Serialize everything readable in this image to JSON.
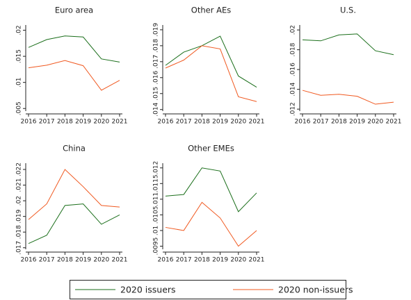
{
  "chart_data": [
    {
      "type": "line",
      "title": "Euro area",
      "categories": [
        "2016",
        "2017",
        "2018",
        "2019",
        "2020",
        "2021"
      ],
      "series": [
        {
          "name": "2020 issuers",
          "color": "#1a6e1a",
          "values": [
            0.0167,
            0.0182,
            0.0189,
            0.0187,
            0.0145,
            0.0139
          ]
        },
        {
          "name": "2020 non-issuers",
          "color": "#f0581f",
          "values": [
            0.0128,
            0.0133,
            0.0142,
            0.0132,
            0.0085,
            0.0104
          ]
        }
      ],
      "ylim": [
        0.0045,
        0.021
      ],
      "yticks": [
        {
          "value": 0.005,
          "label": ".005"
        },
        {
          "value": 0.01,
          "label": ".01"
        },
        {
          "value": 0.015,
          "label": ".015"
        },
        {
          "value": 0.02,
          "label": ".02"
        }
      ]
    },
    {
      "type": "line",
      "title": "Other AEs",
      "categories": [
        "2016",
        "2017",
        "2018",
        "2019",
        "2020",
        "2021"
      ],
      "series": [
        {
          "name": "2020 issuers",
          "color": "#1a6e1a",
          "values": [
            0.01677,
            0.0176,
            0.018,
            0.0186,
            0.0161,
            0.0154
          ]
        },
        {
          "name": "2020 non-issuers",
          "color": "#f0581f",
          "values": [
            0.0166,
            0.0171,
            0.018,
            0.0178,
            0.0148,
            0.0145
          ]
        }
      ],
      "ylim": [
        0.0139,
        0.0193
      ],
      "yticks": [
        {
          "value": 0.014,
          "label": ".014"
        },
        {
          "value": 0.015,
          "label": ".015"
        },
        {
          "value": 0.016,
          "label": ".016"
        },
        {
          "value": 0.017,
          "label": ".017"
        },
        {
          "value": 0.018,
          "label": ".018"
        },
        {
          "value": 0.019,
          "label": ".019"
        }
      ]
    },
    {
      "type": "line",
      "title": "U.S.",
      "categories": [
        "2016",
        "2017",
        "2018",
        "2019",
        "2020",
        "2021"
      ],
      "series": [
        {
          "name": "2020 issuers",
          "color": "#1a6e1a",
          "values": [
            0.019,
            0.0189,
            0.0195,
            0.0196,
            0.0179,
            0.0175
          ]
        },
        {
          "name": "2020 non-issuers",
          "color": "#f0581f",
          "values": [
            0.0139,
            0.0134,
            0.0135,
            0.0133,
            0.0125,
            0.0127
          ]
        }
      ],
      "ylim": [
        0.0118,
        0.0205
      ],
      "yticks": [
        {
          "value": 0.012,
          "label": ".012"
        },
        {
          "value": 0.014,
          "label": ".014"
        },
        {
          "value": 0.016,
          "label": ".016"
        },
        {
          "value": 0.018,
          "label": ".018"
        },
        {
          "value": 0.02,
          "label": ".02"
        }
      ]
    },
    {
      "type": "line",
      "title": "China",
      "categories": [
        "2016",
        "2017",
        "2018",
        "2019",
        "2020",
        "2021"
      ],
      "series": [
        {
          "name": "2020 issuers",
          "color": "#1a6e1a",
          "values": [
            0.01727,
            0.0178,
            0.0197,
            0.0198,
            0.0185,
            0.0191
          ]
        },
        {
          "name": "2020 non-issuers",
          "color": "#f0581f",
          "values": [
            0.0188,
            0.0198,
            0.022,
            0.0209,
            0.0197,
            0.0196
          ]
        }
      ],
      "ylim": [
        0.0169,
        0.0224
      ],
      "yticks": [
        {
          "value": 0.017,
          "label": ".017"
        },
        {
          "value": 0.018,
          "label": ".018"
        },
        {
          "value": 0.019,
          "label": ".019"
        },
        {
          "value": 0.02,
          "label": ".02"
        },
        {
          "value": 0.021,
          "label": ".021"
        },
        {
          "value": 0.022,
          "label": ".022"
        }
      ]
    },
    {
      "type": "line",
      "title": "Other EMEs",
      "categories": [
        "2016",
        "2017",
        "2018",
        "2019",
        "2020",
        "2021"
      ],
      "series": [
        {
          "name": "2020 issuers",
          "color": "#1a6e1a",
          "values": [
            0.0111,
            0.01115,
            0.012,
            0.0119,
            0.0106,
            0.0112
          ]
        },
        {
          "name": "2020 non-issuers",
          "color": "#f0581f",
          "values": [
            0.0101,
            0.01,
            0.0109,
            0.0104,
            0.0095,
            0.01
          ]
        }
      ],
      "ylim": [
        0.0094,
        0.01215
      ],
      "yticks": [
        {
          "value": 0.0095,
          "label": ".0095"
        },
        {
          "value": 0.01,
          "label": ".01"
        },
        {
          "value": 0.0105,
          "label": ".0105"
        },
        {
          "value": 0.011,
          "label": ".011"
        },
        {
          "value": 0.0115,
          "label": ".0115"
        },
        {
          "value": 0.012,
          "label": ".012"
        }
      ]
    }
  ]
}
